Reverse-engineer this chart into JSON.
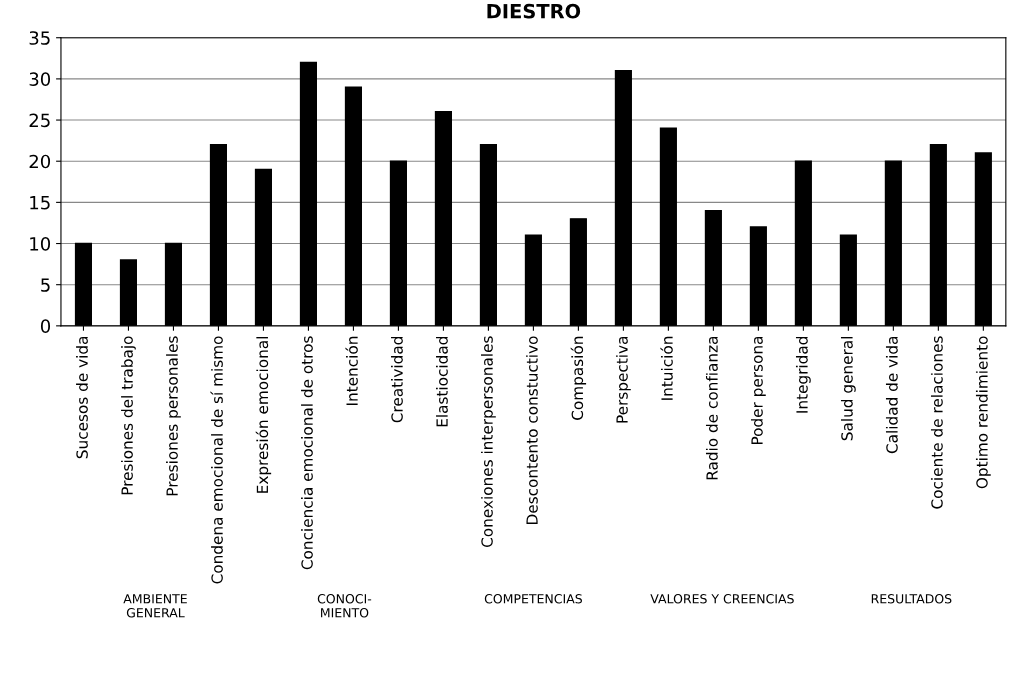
{
  "chart_data": {
    "type": "bar",
    "title": "DIESTRO",
    "categories": [
      "Sucesos de vida",
      "Presiones del trabajo",
      "Presiones personales",
      "Condena emocional de sí mismo",
      "Expresión emocional",
      "Conciencia emocional de otros",
      "Intención",
      "Creatividad",
      "Elastiocidad",
      "Conexiones interpersonales",
      "Descontento constuctivo",
      "Compasión",
      "Perspectiva",
      "Intuición",
      "Radio de confianza",
      "Poder persona",
      "Integridad",
      "Salud general",
      "Calidad de vida",
      "Cociente de relaciones",
      "Optimo rendimiento"
    ],
    "values": [
      10,
      8,
      10,
      22,
      19,
      32,
      29,
      20,
      26,
      22,
      11,
      13,
      31,
      24,
      14,
      12,
      20,
      11,
      20,
      22,
      21
    ],
    "color": "#000000",
    "ylim": [
      0,
      35
    ],
    "yticks": [
      0,
      5,
      10,
      15,
      20,
      25,
      30,
      35
    ],
    "grid": "y",
    "annotations": [
      "AMBIENTE\nGENERAL",
      "CONOCI-\nMIENTO",
      "COMPETENCIAS",
      "VALORES Y CREENCIAS",
      "RESULTADOS"
    ]
  }
}
